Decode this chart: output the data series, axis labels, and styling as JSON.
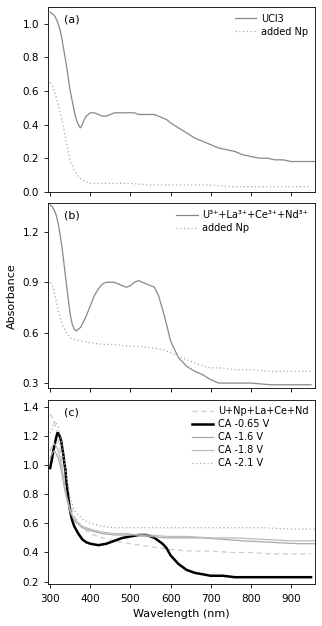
{
  "panel_a": {
    "label": "(a)",
    "ylim": [
      0.0,
      1.1
    ],
    "yticks": [
      0.0,
      0.2,
      0.4,
      0.6,
      0.8,
      1.0
    ],
    "legend": [
      "UCl3",
      "added Np"
    ],
    "ucl3_x": [
      300,
      305,
      310,
      315,
      320,
      325,
      330,
      335,
      340,
      345,
      350,
      355,
      360,
      365,
      370,
      375,
      380,
      385,
      390,
      395,
      400,
      410,
      420,
      430,
      440,
      450,
      460,
      470,
      480,
      490,
      500,
      510,
      520,
      530,
      540,
      550,
      560,
      570,
      580,
      590,
      600,
      620,
      640,
      660,
      680,
      700,
      720,
      740,
      760,
      780,
      800,
      820,
      840,
      860,
      880,
      900,
      920,
      940,
      960
    ],
    "ucl3_y": [
      1.07,
      1.06,
      1.05,
      1.03,
      1.0,
      0.96,
      0.9,
      0.83,
      0.76,
      0.68,
      0.6,
      0.54,
      0.48,
      0.43,
      0.4,
      0.38,
      0.4,
      0.43,
      0.45,
      0.46,
      0.47,
      0.47,
      0.46,
      0.45,
      0.45,
      0.46,
      0.47,
      0.47,
      0.47,
      0.47,
      0.47,
      0.47,
      0.46,
      0.46,
      0.46,
      0.46,
      0.46,
      0.45,
      0.44,
      0.43,
      0.41,
      0.38,
      0.35,
      0.32,
      0.3,
      0.28,
      0.26,
      0.25,
      0.24,
      0.22,
      0.21,
      0.2,
      0.2,
      0.19,
      0.19,
      0.18,
      0.18,
      0.18,
      0.18
    ],
    "np_x": [
      300,
      305,
      310,
      315,
      320,
      325,
      330,
      335,
      340,
      345,
      350,
      360,
      370,
      380,
      390,
      400,
      420,
      440,
      460,
      480,
      500,
      550,
      600,
      650,
      700,
      750,
      800,
      850,
      900,
      950
    ],
    "np_y": [
      0.65,
      0.63,
      0.6,
      0.56,
      0.52,
      0.47,
      0.42,
      0.36,
      0.3,
      0.24,
      0.18,
      0.13,
      0.09,
      0.07,
      0.06,
      0.05,
      0.05,
      0.05,
      0.05,
      0.05,
      0.05,
      0.04,
      0.04,
      0.04,
      0.04,
      0.03,
      0.03,
      0.03,
      0.03,
      0.03
    ]
  },
  "panel_b": {
    "label": "(b)",
    "ylim": [
      0.27,
      1.37
    ],
    "yticks": [
      0.3,
      0.6,
      0.9,
      1.2
    ],
    "legend": [
      "U³⁺+La³⁺+Ce³⁺+Nd³⁺",
      "added Np"
    ],
    "mix_x": [
      300,
      305,
      310,
      315,
      320,
      325,
      330,
      335,
      340,
      345,
      350,
      355,
      360,
      365,
      370,
      375,
      380,
      390,
      400,
      410,
      420,
      430,
      440,
      450,
      460,
      470,
      480,
      490,
      500,
      510,
      520,
      530,
      540,
      550,
      560,
      570,
      580,
      590,
      600,
      620,
      640,
      660,
      680,
      700,
      720,
      750,
      800,
      850,
      900,
      950
    ],
    "mix_y": [
      1.36,
      1.35,
      1.33,
      1.3,
      1.25,
      1.18,
      1.1,
      1.0,
      0.9,
      0.8,
      0.71,
      0.65,
      0.62,
      0.61,
      0.62,
      0.63,
      0.65,
      0.7,
      0.76,
      0.82,
      0.86,
      0.89,
      0.9,
      0.9,
      0.9,
      0.89,
      0.88,
      0.87,
      0.88,
      0.9,
      0.91,
      0.9,
      0.89,
      0.88,
      0.87,
      0.82,
      0.74,
      0.65,
      0.55,
      0.45,
      0.4,
      0.37,
      0.35,
      0.32,
      0.3,
      0.3,
      0.3,
      0.29,
      0.29,
      0.29
    ],
    "np2_x": [
      300,
      305,
      310,
      315,
      320,
      330,
      340,
      350,
      360,
      380,
      400,
      430,
      460,
      490,
      520,
      550,
      580,
      610,
      640,
      670,
      700,
      730,
      760,
      800,
      850,
      900,
      950
    ],
    "np2_y": [
      0.9,
      0.88,
      0.84,
      0.79,
      0.73,
      0.65,
      0.6,
      0.57,
      0.56,
      0.55,
      0.54,
      0.53,
      0.53,
      0.52,
      0.52,
      0.51,
      0.5,
      0.47,
      0.44,
      0.41,
      0.39,
      0.39,
      0.38,
      0.38,
      0.37,
      0.37,
      0.37
    ]
  },
  "panel_c": {
    "label": "(c)",
    "ylim": [
      0.18,
      1.45
    ],
    "yticks": [
      0.2,
      0.4,
      0.6,
      0.8,
      1.0,
      1.2,
      1.4
    ],
    "legend": [
      "U+Np+La+Ce+Nd",
      "CA -0.65 V",
      "CA -1.6 V",
      "CA -1.8 V",
      "CA -2.1 V"
    ],
    "baseline_x": [
      300,
      305,
      310,
      315,
      320,
      325,
      330,
      340,
      350,
      360,
      380,
      400,
      430,
      460,
      500,
      550,
      600,
      650,
      700,
      750,
      800,
      850,
      900,
      950
    ],
    "baseline_y": [
      1.35,
      1.33,
      1.3,
      1.25,
      1.18,
      1.1,
      1.0,
      0.85,
      0.73,
      0.65,
      0.57,
      0.53,
      0.5,
      0.48,
      0.46,
      0.44,
      0.42,
      0.41,
      0.41,
      0.4,
      0.4,
      0.39,
      0.39,
      0.39
    ],
    "ca065_x": [
      300,
      305,
      308,
      312,
      315,
      318,
      320,
      322,
      325,
      328,
      330,
      333,
      335,
      338,
      340,
      345,
      350,
      355,
      360,
      370,
      380,
      390,
      400,
      420,
      440,
      460,
      480,
      500,
      520,
      540,
      560,
      580,
      590,
      600,
      620,
      640,
      660,
      680,
      700,
      730,
      760,
      800,
      850,
      900,
      950
    ],
    "ca065_y": [
      0.98,
      1.05,
      1.1,
      1.15,
      1.19,
      1.22,
      1.22,
      1.21,
      1.19,
      1.16,
      1.12,
      1.07,
      1.02,
      0.97,
      0.9,
      0.78,
      0.68,
      0.62,
      0.58,
      0.53,
      0.49,
      0.47,
      0.46,
      0.45,
      0.46,
      0.48,
      0.5,
      0.51,
      0.52,
      0.52,
      0.5,
      0.46,
      0.43,
      0.38,
      0.32,
      0.28,
      0.26,
      0.25,
      0.24,
      0.24,
      0.23,
      0.23,
      0.23,
      0.23,
      0.23
    ],
    "ca16_x": [
      300,
      305,
      310,
      315,
      320,
      325,
      330,
      335,
      340,
      350,
      360,
      380,
      400,
      430,
      460,
      490,
      520,
      550,
      590,
      630,
      680,
      730,
      780,
      850,
      920,
      960
    ],
    "ca16_y": [
      1.05,
      1.08,
      1.1,
      1.08,
      1.05,
      1.0,
      0.93,
      0.85,
      0.78,
      0.68,
      0.62,
      0.57,
      0.55,
      0.53,
      0.52,
      0.52,
      0.52,
      0.51,
      0.5,
      0.5,
      0.5,
      0.49,
      0.48,
      0.47,
      0.46,
      0.46
    ],
    "ca18_x": [
      300,
      305,
      310,
      315,
      320,
      325,
      330,
      335,
      340,
      350,
      360,
      380,
      400,
      430,
      460,
      490,
      520,
      550,
      590,
      640,
      700,
      760,
      830,
      900,
      960
    ],
    "ca18_y": [
      1.1,
      1.13,
      1.15,
      1.13,
      1.1,
      1.05,
      0.97,
      0.88,
      0.8,
      0.69,
      0.63,
      0.58,
      0.56,
      0.54,
      0.53,
      0.53,
      0.52,
      0.52,
      0.51,
      0.51,
      0.5,
      0.5,
      0.49,
      0.48,
      0.48
    ],
    "ca21_x": [
      300,
      305,
      310,
      315,
      320,
      325,
      330,
      335,
      340,
      350,
      360,
      380,
      400,
      430,
      460,
      490,
      520,
      550,
      590,
      640,
      700,
      760,
      830,
      900,
      960
    ],
    "ca21_y": [
      1.22,
      1.26,
      1.3,
      1.29,
      1.26,
      1.21,
      1.13,
      1.03,
      0.92,
      0.78,
      0.69,
      0.63,
      0.6,
      0.58,
      0.57,
      0.57,
      0.57,
      0.57,
      0.57,
      0.57,
      0.57,
      0.57,
      0.57,
      0.56,
      0.56
    ]
  },
  "xlabel": "Wavelength (nm)",
  "ylabel": "Absorbance",
  "xlim": [
    295,
    960
  ],
  "xticks": [
    300,
    400,
    500,
    600,
    700,
    800,
    900
  ],
  "font_size": 7.5
}
